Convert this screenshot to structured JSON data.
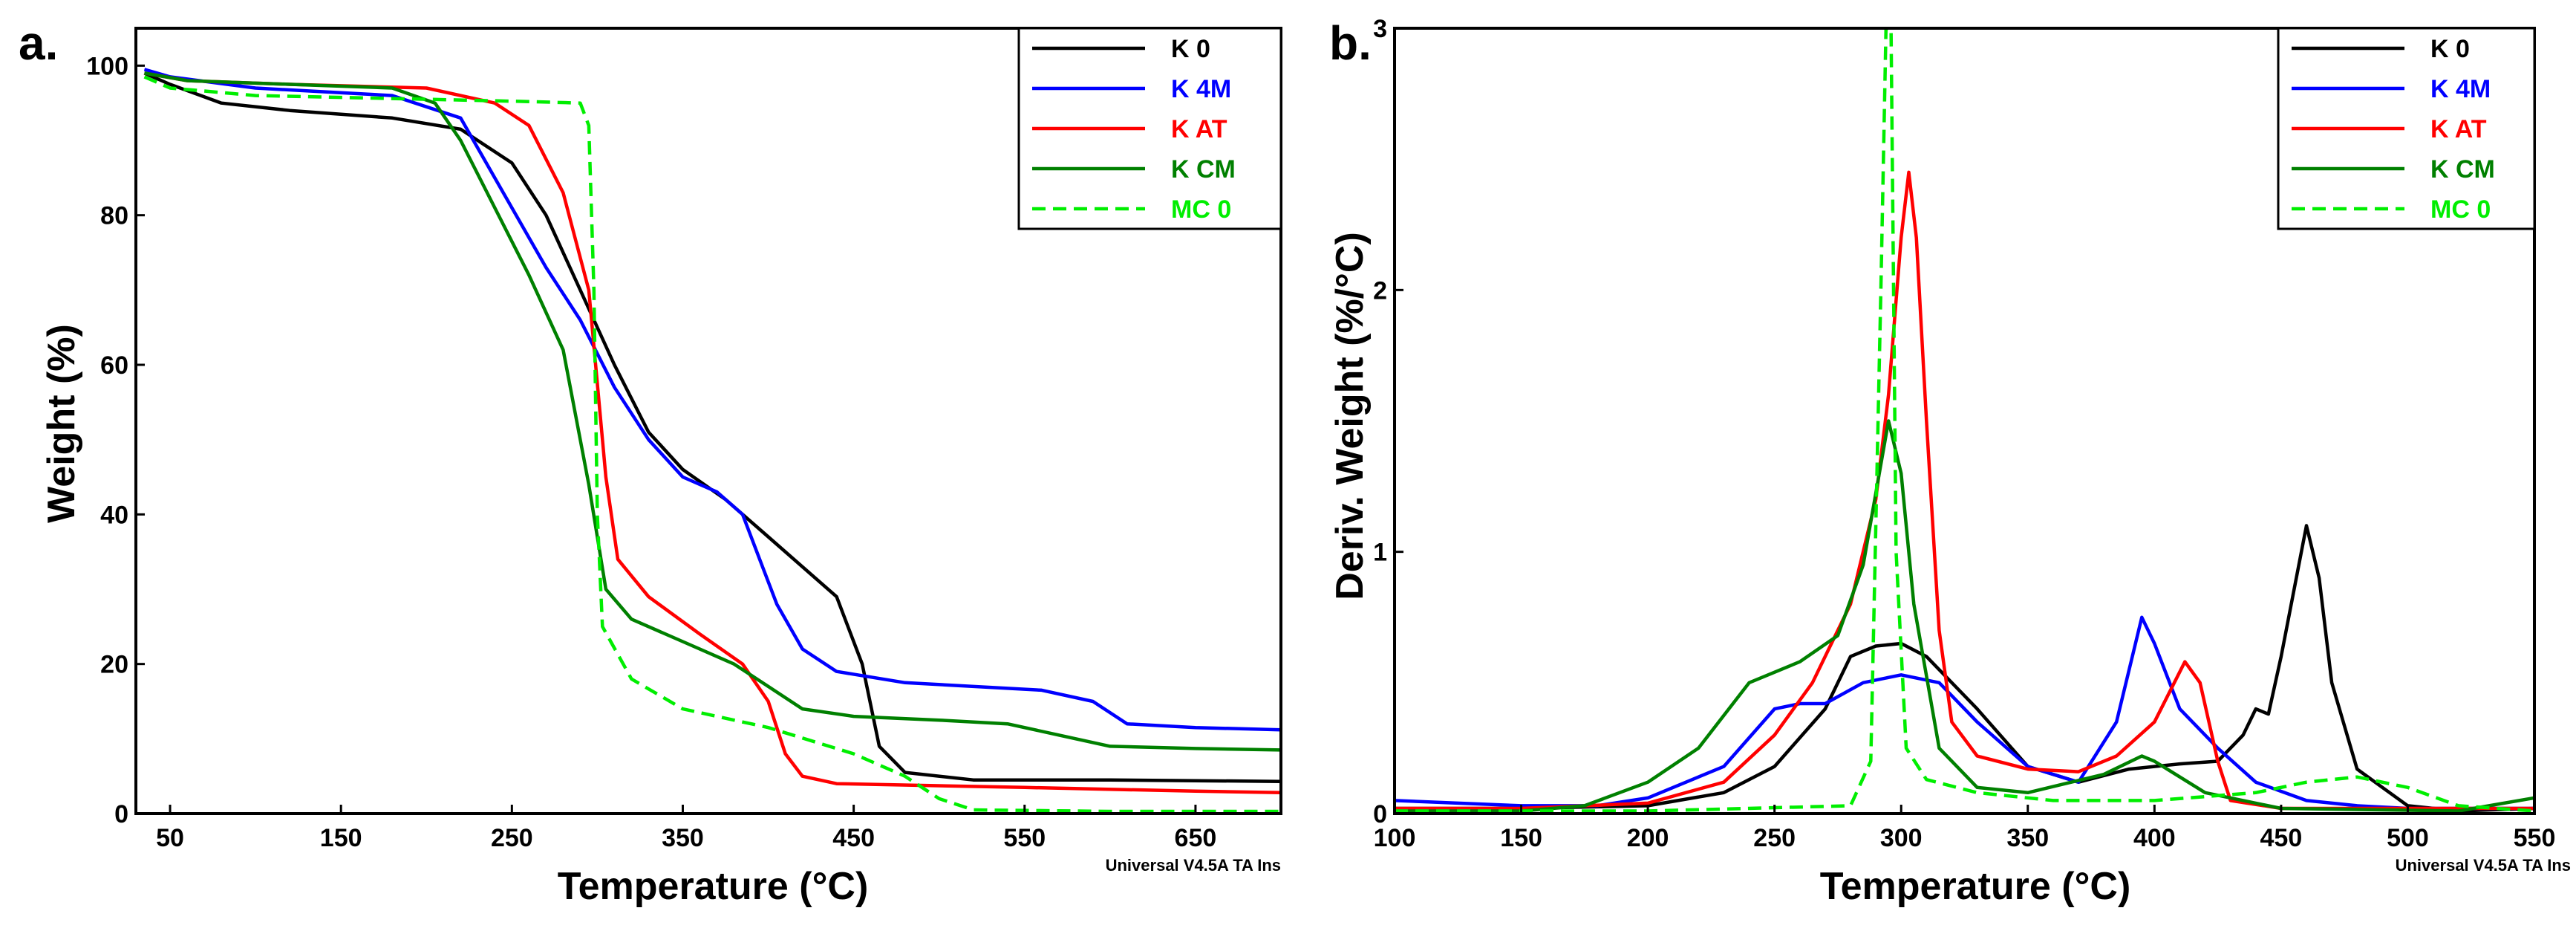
{
  "chart_data": [
    {
      "type": "line",
      "panel_label": "a.",
      "xlabel": "Temperature (°C)",
      "ylabel": "Weight (%)",
      "xlim": [
        30,
        700
      ],
      "ylim": [
        0,
        105
      ],
      "xticks": [
        50,
        150,
        250,
        350,
        450,
        550,
        650
      ],
      "yticks": [
        0,
        20,
        40,
        60,
        80,
        100
      ],
      "footer": "Universal V4.5A TA Ins",
      "legend_position": "top-right",
      "grid": false,
      "series": [
        {
          "name": "K 0",
          "color": "#000000",
          "dash": "solid",
          "points": [
            [
              35,
              99
            ],
            [
              50,
              97.5
            ],
            [
              80,
              95
            ],
            [
              120,
              94
            ],
            [
              180,
              93
            ],
            [
              220,
              91.5
            ],
            [
              250,
              87
            ],
            [
              270,
              80
            ],
            [
              290,
              70
            ],
            [
              310,
              60
            ],
            [
              330,
              51
            ],
            [
              350,
              46
            ],
            [
              375,
              42
            ],
            [
              400,
              37
            ],
            [
              420,
              33
            ],
            [
              440,
              29
            ],
            [
              455,
              20
            ],
            [
              465,
              9
            ],
            [
              480,
              5.5
            ],
            [
              520,
              4.5
            ],
            [
              600,
              4.5
            ],
            [
              700,
              4.3
            ]
          ]
        },
        {
          "name": "K 4M",
          "color": "#0000ff",
          "dash": "solid",
          "points": [
            [
              35,
              99.5
            ],
            [
              50,
              98.5
            ],
            [
              100,
              97
            ],
            [
              180,
              96
            ],
            [
              220,
              93
            ],
            [
              245,
              83
            ],
            [
              270,
              73
            ],
            [
              290,
              66
            ],
            [
              310,
              57
            ],
            [
              330,
              50
            ],
            [
              350,
              45
            ],
            [
              370,
              43
            ],
            [
              385,
              40
            ],
            [
              395,
              34
            ],
            [
              405,
              28
            ],
            [
              420,
              22
            ],
            [
              440,
              19
            ],
            [
              480,
              17.5
            ],
            [
              560,
              16.5
            ],
            [
              590,
              15
            ],
            [
              610,
              12
            ],
            [
              650,
              11.5
            ],
            [
              700,
              11.2
            ]
          ]
        },
        {
          "name": "K AT",
          "color": "#ff0000",
          "dash": "solid",
          "points": [
            [
              35,
              99
            ],
            [
              60,
              98
            ],
            [
              120,
              97.5
            ],
            [
              200,
              97
            ],
            [
              240,
              95
            ],
            [
              260,
              92
            ],
            [
              280,
              83
            ],
            [
              295,
              70
            ],
            [
              305,
              45
            ],
            [
              312,
              34
            ],
            [
              330,
              29
            ],
            [
              360,
              24
            ],
            [
              385,
              20
            ],
            [
              400,
              15
            ],
            [
              410,
              8
            ],
            [
              420,
              5
            ],
            [
              440,
              4
            ],
            [
              550,
              3.5
            ],
            [
              650,
              3
            ],
            [
              700,
              2.8
            ]
          ]
        },
        {
          "name": "K CM",
          "color": "#008000",
          "dash": "solid",
          "points": [
            [
              35,
              99
            ],
            [
              60,
              98
            ],
            [
              120,
              97.5
            ],
            [
              180,
              97
            ],
            [
              205,
              95
            ],
            [
              220,
              90
            ],
            [
              240,
              81
            ],
            [
              260,
              72
            ],
            [
              280,
              62
            ],
            [
              295,
              44
            ],
            [
              305,
              30
            ],
            [
              320,
              26
            ],
            [
              350,
              23
            ],
            [
              380,
              20
            ],
            [
              400,
              17
            ],
            [
              420,
              14
            ],
            [
              450,
              13
            ],
            [
              500,
              12.5
            ],
            [
              540,
              12
            ],
            [
              570,
              10.5
            ],
            [
              600,
              9
            ],
            [
              650,
              8.7
            ],
            [
              700,
              8.5
            ]
          ]
        },
        {
          "name": "MC 0",
          "color": "#00ee00",
          "dash": "dashed",
          "points": [
            [
              35,
              98.5
            ],
            [
              50,
              97
            ],
            [
              100,
              96
            ],
            [
              200,
              95.5
            ],
            [
              260,
              95.2
            ],
            [
              290,
              95
            ],
            [
              295,
              92
            ],
            [
              298,
              70
            ],
            [
              300,
              40
            ],
            [
              303,
              25
            ],
            [
              320,
              18
            ],
            [
              350,
              14
            ],
            [
              400,
              11.5
            ],
            [
              450,
              8
            ],
            [
              480,
              5
            ],
            [
              500,
              2
            ],
            [
              520,
              0.5
            ],
            [
              600,
              0.3
            ],
            [
              700,
              0.3
            ]
          ]
        }
      ]
    },
    {
      "type": "line",
      "panel_label": "b.",
      "xlabel": "Temperature (°C)",
      "ylabel": "Deriv. Weight (%/°C)",
      "xlim": [
        100,
        550
      ],
      "ylim": [
        0,
        3
      ],
      "xticks": [
        100,
        150,
        200,
        250,
        300,
        350,
        400,
        450,
        500,
        550
      ],
      "yticks": [
        0,
        1,
        2,
        3
      ],
      "footer": "Universal V4.5A TA Ins",
      "legend_position": "top-right",
      "grid": false,
      "series": [
        {
          "name": "K 0",
          "color": "#000000",
          "dash": "solid",
          "points": [
            [
              100,
              0.02
            ],
            [
              150,
              0.02
            ],
            [
              200,
              0.03
            ],
            [
              230,
              0.08
            ],
            [
              250,
              0.18
            ],
            [
              270,
              0.4
            ],
            [
              280,
              0.6
            ],
            [
              290,
              0.64
            ],
            [
              300,
              0.65
            ],
            [
              310,
              0.6
            ],
            [
              330,
              0.4
            ],
            [
              350,
              0.18
            ],
            [
              370,
              0.12
            ],
            [
              390,
              0.17
            ],
            [
              410,
              0.19
            ],
            [
              425,
              0.2
            ],
            [
              435,
              0.3
            ],
            [
              440,
              0.4
            ],
            [
              445,
              0.38
            ],
            [
              450,
              0.6
            ],
            [
              460,
              1.1
            ],
            [
              465,
              0.9
            ],
            [
              470,
              0.5
            ],
            [
              480,
              0.17
            ],
            [
              490,
              0.1
            ],
            [
              500,
              0.03
            ],
            [
              520,
              0.01
            ],
            [
              550,
              0.02
            ]
          ]
        },
        {
          "name": "K 4M",
          "color": "#0000ff",
          "dash": "solid",
          "points": [
            [
              100,
              0.05
            ],
            [
              150,
              0.03
            ],
            [
              180,
              0.03
            ],
            [
              200,
              0.06
            ],
            [
              230,
              0.18
            ],
            [
              250,
              0.4
            ],
            [
              260,
              0.42
            ],
            [
              270,
              0.42
            ],
            [
              285,
              0.5
            ],
            [
              300,
              0.53
            ],
            [
              315,
              0.5
            ],
            [
              330,
              0.35
            ],
            [
              350,
              0.18
            ],
            [
              370,
              0.12
            ],
            [
              385,
              0.35
            ],
            [
              395,
              0.75
            ],
            [
              400,
              0.65
            ],
            [
              410,
              0.4
            ],
            [
              425,
              0.25
            ],
            [
              440,
              0.12
            ],
            [
              460,
              0.05
            ],
            [
              480,
              0.03
            ],
            [
              500,
              0.02
            ],
            [
              550,
              0.02
            ]
          ]
        },
        {
          "name": "K AT",
          "color": "#ff0000",
          "dash": "solid",
          "points": [
            [
              100,
              0.02
            ],
            [
              150,
              0.02
            ],
            [
              200,
              0.04
            ],
            [
              230,
              0.12
            ],
            [
              250,
              0.3
            ],
            [
              265,
              0.5
            ],
            [
              280,
              0.8
            ],
            [
              290,
              1.2
            ],
            [
              295,
              1.6
            ],
            [
              300,
              2.2
            ],
            [
              303,
              2.45
            ],
            [
              306,
              2.2
            ],
            [
              310,
              1.5
            ],
            [
              315,
              0.7
            ],
            [
              320,
              0.35
            ],
            [
              330,
              0.22
            ],
            [
              350,
              0.17
            ],
            [
              370,
              0.16
            ],
            [
              385,
              0.22
            ],
            [
              400,
              0.35
            ],
            [
              412,
              0.58
            ],
            [
              418,
              0.5
            ],
            [
              425,
              0.2
            ],
            [
              430,
              0.05
            ],
            [
              450,
              0.02
            ],
            [
              550,
              0.02
            ]
          ]
        },
        {
          "name": "K CM",
          "color": "#008000",
          "dash": "solid",
          "points": [
            [
              100,
              0.01
            ],
            [
              150,
              0.01
            ],
            [
              175,
              0.03
            ],
            [
              200,
              0.12
            ],
            [
              220,
              0.25
            ],
            [
              240,
              0.5
            ],
            [
              260,
              0.58
            ],
            [
              275,
              0.68
            ],
            [
              285,
              0.95
            ],
            [
              295,
              1.5
            ],
            [
              300,
              1.3
            ],
            [
              305,
              0.8
            ],
            [
              315,
              0.25
            ],
            [
              330,
              0.1
            ],
            [
              350,
              0.08
            ],
            [
              380,
              0.15
            ],
            [
              395,
              0.22
            ],
            [
              400,
              0.2
            ],
            [
              420,
              0.08
            ],
            [
              450,
              0.02
            ],
            [
              520,
              0.01
            ],
            [
              550,
              0.06
            ]
          ]
        },
        {
          "name": "MC 0",
          "color": "#00ee00",
          "dash": "dashed",
          "points": [
            [
              100,
              0.01
            ],
            [
              200,
              0.01
            ],
            [
              280,
              0.03
            ],
            [
              288,
              0.2
            ],
            [
              292,
              2.0
            ],
            [
              294,
              3.0
            ],
            [
              296,
              3.0
            ],
            [
              298,
              1.0
            ],
            [
              302,
              0.25
            ],
            [
              310,
              0.13
            ],
            [
              330,
              0.08
            ],
            [
              360,
              0.05
            ],
            [
              400,
              0.05
            ],
            [
              440,
              0.08
            ],
            [
              460,
              0.12
            ],
            [
              480,
              0.14
            ],
            [
              500,
              0.1
            ],
            [
              520,
              0.03
            ],
            [
              550,
              0.01
            ]
          ]
        }
      ]
    }
  ]
}
